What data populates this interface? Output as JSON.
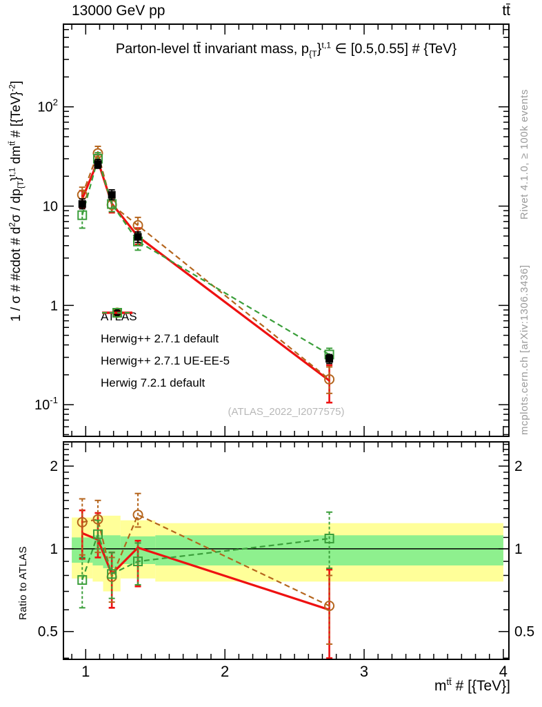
{
  "header": {
    "left": "13000 GeV pp",
    "right": "tt̄"
  },
  "title_rich": [
    [
      "Parton-level tt̄ invariant mass, p",
      "n"
    ],
    [
      "{T",
      "sub"
    ],
    [
      "}",
      "n"
    ],
    [
      "t,1",
      "sup"
    ],
    [
      " ∈ [0.5,0.55] # {TeV}",
      "n"
    ]
  ],
  "ylabel_rich": [
    [
      "1 / σ # #cdot # d",
      "n"
    ],
    [
      "2",
      "sup"
    ],
    [
      "σ / dp",
      "n"
    ],
    [
      "{T",
      "sub"
    ],
    [
      "}",
      "n"
    ],
    [
      "t,1",
      "sup"
    ],
    [
      " dm",
      "n"
    ],
    [
      "tt̄",
      "sup"
    ],
    [
      " # [{TeV}",
      "n"
    ],
    [
      "-2",
      "sup"
    ],
    [
      "]",
      "n"
    ]
  ],
  "xlabel_rich": [
    [
      "m",
      "n"
    ],
    [
      "tt̄",
      "sup"
    ],
    [
      " # [{TeV}]",
      "n"
    ]
  ],
  "ratio_label": "Ratio to ATLAS",
  "watermark": "(ATLAS_2022_I2077575)",
  "side_notes": {
    "top": "Rivet 4.1.0, ≥ 100k events",
    "bottom": "mcplots.cern.ch [arXiv:1306.3436]"
  },
  "colors": {
    "atlas": "#000000",
    "herwigpp_default": "#b5651d",
    "herwigpp_ueee5": "#ee1111",
    "herwig7_default": "#3a9e3a",
    "band_outer_yellow": "#ffff99",
    "band_inner_green": "#8ef08e",
    "note_gray": "#9a9a9a",
    "watermark_gray": "#b8b8b8"
  },
  "chart_data": {
    "type": "line",
    "title": "Parton-level tt~ invariant mass, p_{T}^{t,1} in [0.5,0.55] # {TeV}",
    "xlabel": "m^{tt~} # [{TeV}]",
    "ylabel": "1 / sigma # #cdot # d^2 sigma / dp_{T}^{t,1} dm^{tt~} # [{TeV}^{-2}]",
    "ylabel_ratio": "Ratio to ATLAS",
    "xlim": [
      0.84,
      4.04
    ],
    "x_minor_step": 0.1,
    "x_ticks": [
      {
        "v": 1,
        "label": "1"
      },
      {
        "v": 2,
        "label": "2"
      },
      {
        "v": 3,
        "label": "3"
      },
      {
        "v": 4,
        "label": "4"
      }
    ],
    "main_panel": {
      "yscale": "log",
      "ylim": [
        0.048,
        680
      ],
      "y_ticks": [
        {
          "v": 100,
          "base": "10",
          "exp": "2"
        },
        {
          "v": 10,
          "label": "10"
        },
        {
          "v": 1,
          "label": "1"
        },
        {
          "v": 0.1,
          "base": "10",
          "exp": "-1"
        }
      ]
    },
    "ratio_panel": {
      "yscale": "log",
      "ylim": [
        0.396,
        2.45
      ],
      "unity_line": true,
      "y_ticks": [
        {
          "v": 2,
          "label": "2"
        },
        {
          "v": 1,
          "label": "1"
        },
        {
          "v": 0.5,
          "label": "0.5"
        }
      ],
      "bands": [
        {
          "x": [
            0.9,
            1.05
          ],
          "outer": [
            0.78,
            1.3
          ],
          "inner": [
            0.89,
            1.1
          ]
        },
        {
          "x": [
            1.05,
            1.125
          ],
          "outer": [
            0.76,
            1.32
          ],
          "inner": [
            0.87,
            1.12
          ]
        },
        {
          "x": [
            1.125,
            1.25
          ],
          "outer": [
            0.7,
            1.32
          ],
          "inner": [
            0.85,
            1.12
          ]
        },
        {
          "x": [
            1.25,
            1.5
          ],
          "outer": [
            0.78,
            1.27
          ],
          "inner": [
            0.88,
            1.11
          ]
        },
        {
          "x": [
            1.5,
            4.0
          ],
          "outer": [
            0.76,
            1.24
          ],
          "inner": [
            0.87,
            1.12
          ]
        }
      ]
    },
    "x": [
      0.975,
      1.0875,
      1.1875,
      1.375,
      2.75
    ],
    "series": [
      {
        "key": "atlas",
        "label": "ATLAS",
        "color": "#000000",
        "marker": "filled-square",
        "line": "none",
        "y": [
          10.5,
          26.5,
          13.0,
          4.9,
          0.29
        ],
        "y_lo": [
          9.4,
          24.0,
          11.6,
          4.3,
          0.26
        ],
        "y_hi": [
          11.8,
          29.5,
          14.6,
          5.5,
          0.32
        ]
      },
      {
        "key": "herwigpp_default",
        "label": "Herwig++ 2.7.1 default",
        "color": "#b5651d",
        "marker": "open-circle",
        "line": "dashed",
        "y": [
          13.0,
          34.0,
          10.3,
          6.4,
          0.18
        ],
        "y_lo": [
          11.0,
          29.5,
          8.8,
          5.3,
          0.13
        ],
        "y_hi": [
          15.5,
          40.0,
          12.0,
          7.7,
          0.24
        ],
        "ratio": [
          1.25,
          1.28,
          0.79,
          1.33,
          0.62
        ],
        "ratio_lo": [
          0.95,
          0.97,
          0.64,
          1.2,
          0.45
        ],
        "ratio_hi": [
          1.52,
          1.5,
          0.93,
          1.59,
          0.8
        ]
      },
      {
        "key": "herwigpp_ueee5",
        "label": "Herwig++ 2.7.1 UE-EE-5",
        "color": "#ee1111",
        "marker": "none",
        "line": "solid",
        "y": [
          11.8,
          28.5,
          10.6,
          4.95,
          0.175
        ],
        "y_lo": [
          9.6,
          24.5,
          8.6,
          4.1,
          0.105
        ],
        "y_hi": [
          14.3,
          33.0,
          12.9,
          6.0,
          0.25
        ],
        "ratio": [
          1.14,
          1.08,
          0.81,
          1.01,
          0.6
        ],
        "ratio_lo": [
          0.92,
          0.93,
          0.61,
          0.73,
          0.4
        ],
        "ratio_hi": [
          1.38,
          1.35,
          0.97,
          1.07,
          0.84
        ]
      },
      {
        "key": "herwig7_default",
        "label": "Herwig 7.2.1 default",
        "color": "#3a9e3a",
        "marker": "open-square",
        "line": "dashed",
        "y": [
          8.1,
          30.0,
          10.5,
          4.4,
          0.32
        ],
        "y_lo": [
          6.0,
          26.0,
          8.8,
          3.6,
          0.27
        ],
        "y_hi": [
          9.8,
          34.5,
          12.5,
          5.3,
          0.37
        ],
        "ratio": [
          0.77,
          1.13,
          0.81,
          0.9,
          1.09
        ],
        "ratio_lo": [
          0.61,
          1.0,
          0.66,
          0.74,
          0.85
        ],
        "ratio_hi": [
          0.93,
          1.27,
          0.97,
          1.05,
          1.36
        ]
      }
    ]
  }
}
